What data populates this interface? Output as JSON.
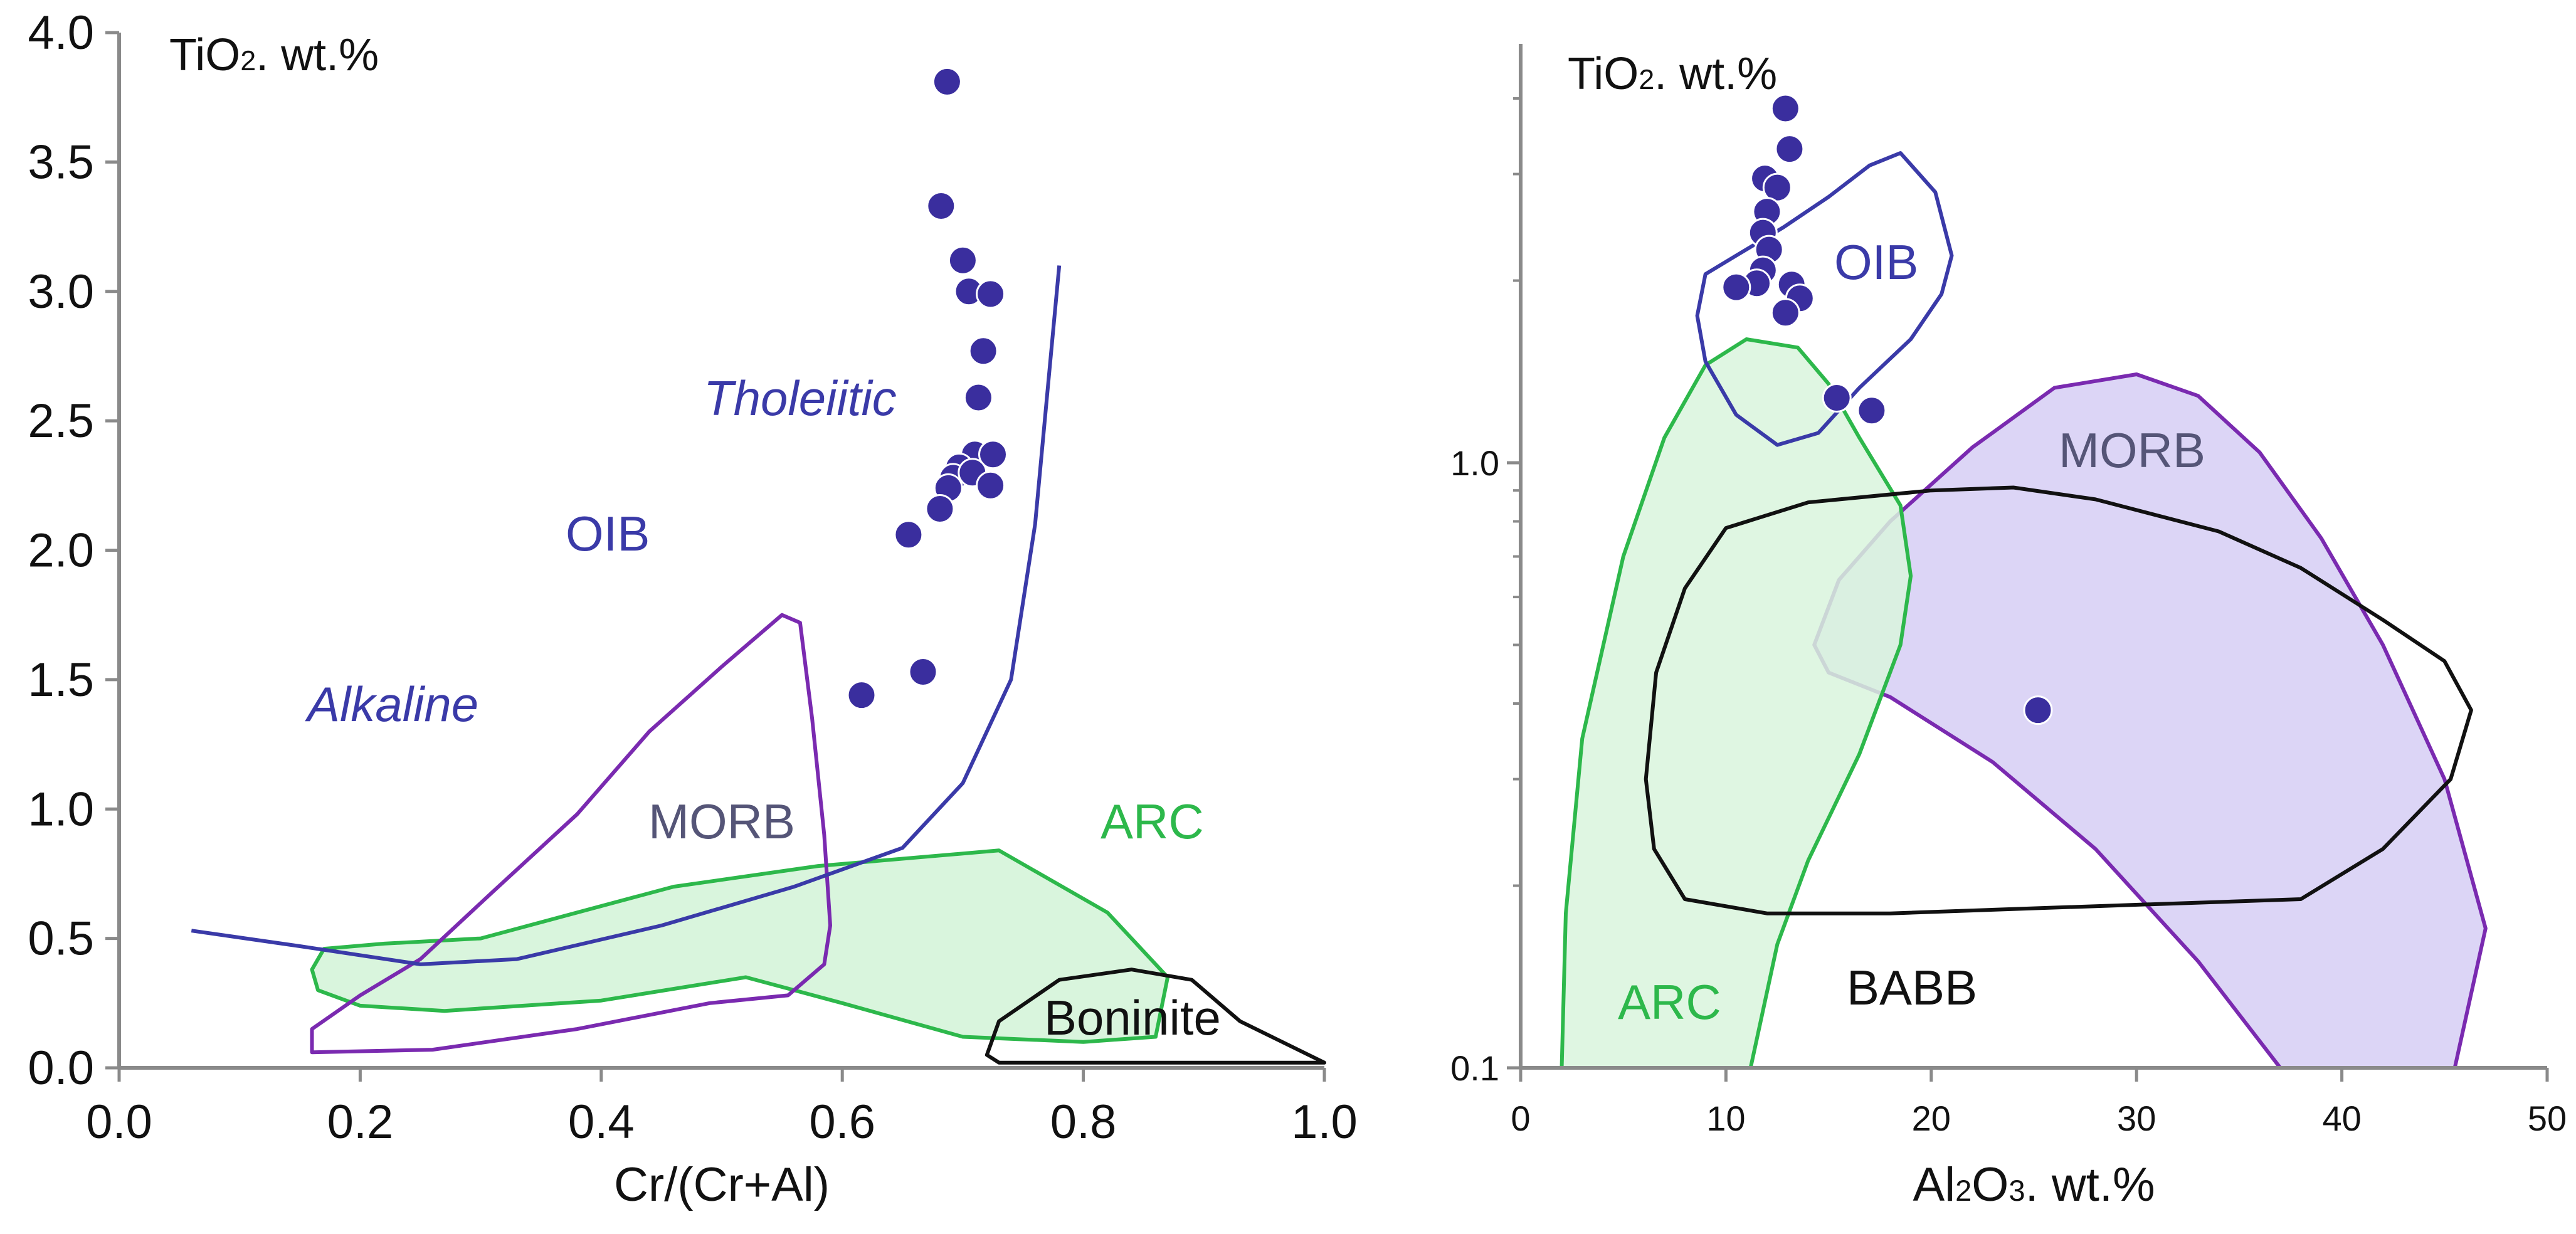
{
  "chart_data": [
    {
      "type": "scatter",
      "panel": "left",
      "xlabel": "Cr/(Cr+Al)",
      "ylabel_annotation": "TiO2. wt.%",
      "xlim": [
        0.0,
        1.0
      ],
      "ylim": [
        0.0,
        4.0
      ],
      "x_ticks": [
        0.0,
        0.2,
        0.4,
        0.6,
        0.8,
        1.0
      ],
      "x_tick_labels": [
        "0.0",
        "0.2",
        "0.4",
        "0.6",
        "0.8",
        "1.0"
      ],
      "y_ticks": [
        0.0,
        0.5,
        1.0,
        1.5,
        2.0,
        2.5,
        3.0,
        3.5,
        4.0
      ],
      "y_tick_labels": [
        "0.0",
        "0.5",
        "1.0",
        "1.5",
        "2.0",
        "2.5",
        "3.0",
        "3.5",
        "4.0"
      ],
      "grid": false,
      "points": [
        {
          "x": 0.687,
          "y": 3.81
        },
        {
          "x": 0.682,
          "y": 3.33
        },
        {
          "x": 0.7,
          "y": 3.12
        },
        {
          "x": 0.705,
          "y": 3.0
        },
        {
          "x": 0.723,
          "y": 2.99
        },
        {
          "x": 0.717,
          "y": 2.77
        },
        {
          "x": 0.713,
          "y": 2.59
        },
        {
          "x": 0.71,
          "y": 2.37
        },
        {
          "x": 0.725,
          "y": 2.37
        },
        {
          "x": 0.697,
          "y": 2.32
        },
        {
          "x": 0.692,
          "y": 2.28
        },
        {
          "x": 0.708,
          "y": 2.3
        },
        {
          "x": 0.723,
          "y": 2.25
        },
        {
          "x": 0.688,
          "y": 2.24
        },
        {
          "x": 0.681,
          "y": 2.16
        },
        {
          "x": 0.655,
          "y": 2.06
        },
        {
          "x": 0.667,
          "y": 1.53
        },
        {
          "x": 0.616,
          "y": 1.44
        }
      ],
      "regions": [
        {
          "name": "ARC",
          "color": "#2db84b",
          "fill": "#d9f5dd",
          "outline": [
            [
              0.17,
              0.46
            ],
            [
              0.22,
              0.48
            ],
            [
              0.3,
              0.5
            ],
            [
              0.38,
              0.6
            ],
            [
              0.46,
              0.7
            ],
            [
              0.58,
              0.78
            ],
            [
              0.73,
              0.84
            ],
            [
              0.82,
              0.6
            ],
            [
              0.87,
              0.35
            ],
            [
              0.86,
              0.12
            ],
            [
              0.8,
              0.1
            ],
            [
              0.7,
              0.12
            ],
            [
              0.6,
              0.25
            ],
            [
              0.52,
              0.35
            ],
            [
              0.4,
              0.26
            ],
            [
              0.27,
              0.22
            ],
            [
              0.2,
              0.24
            ],
            [
              0.165,
              0.3
            ],
            [
              0.16,
              0.38
            ]
          ]
        },
        {
          "name": "MORB",
          "color": "#7a2ab0",
          "fill": "none",
          "outline": [
            [
              0.16,
              0.15
            ],
            [
              0.2,
              0.28
            ],
            [
              0.25,
              0.42
            ],
            [
              0.31,
              0.68
            ],
            [
              0.38,
              0.98
            ],
            [
              0.44,
              1.3
            ],
            [
              0.5,
              1.55
            ],
            [
              0.55,
              1.75
            ],
            [
              0.565,
              1.72
            ],
            [
              0.575,
              1.35
            ],
            [
              0.585,
              0.9
            ],
            [
              0.59,
              0.55
            ],
            [
              0.585,
              0.4
            ],
            [
              0.555,
              0.28
            ],
            [
              0.49,
              0.25
            ],
            [
              0.38,
              0.15
            ],
            [
              0.26,
              0.07
            ],
            [
              0.16,
              0.06
            ]
          ]
        },
        {
          "name": "Boninite",
          "color": "#111111",
          "fill": "none",
          "outline": [
            [
              0.72,
              0.05
            ],
            [
              0.73,
              0.18
            ],
            [
              0.78,
              0.34
            ],
            [
              0.84,
              0.38
            ],
            [
              0.89,
              0.34
            ],
            [
              0.93,
              0.18
            ],
            [
              1.0,
              0.02
            ],
            [
              0.73,
              0.02
            ]
          ]
        }
      ],
      "boundary_curve": {
        "color": "#3a3aa8",
        "points": [
          [
            0.06,
            0.53
          ],
          [
            0.15,
            0.47
          ],
          [
            0.25,
            0.4
          ],
          [
            0.33,
            0.42
          ],
          [
            0.45,
            0.55
          ],
          [
            0.56,
            0.7
          ],
          [
            0.65,
            0.85
          ],
          [
            0.7,
            1.1
          ],
          [
            0.74,
            1.5
          ],
          [
            0.76,
            2.1
          ],
          [
            0.77,
            2.6
          ],
          [
            0.78,
            3.1
          ]
        ]
      },
      "annotations": [
        {
          "text": "TiO2. wt.%",
          "color": "#111111"
        },
        {
          "text": "Tholeiitic",
          "color": "#3a3aa8",
          "italic": true
        },
        {
          "text": "OIB",
          "color": "#3a3aa8"
        },
        {
          "text": "Alkaline",
          "color": "#3a3aa8",
          "italic": true
        },
        {
          "text": "MORB",
          "color": "#555577"
        },
        {
          "text": "ARC",
          "color": "#2db84b"
        },
        {
          "text": "Boninite",
          "color": "#111111"
        }
      ]
    },
    {
      "type": "scatter",
      "panel": "right",
      "xlabel": "Al2O3. wt.%",
      "ylabel_annotation": "TiO2. wt.%",
      "xlim": [
        0,
        50
      ],
      "ylim": [
        0.1,
        4.5
      ],
      "y_scale": "log",
      "x_ticks": [
        0,
        10,
        20,
        30,
        40,
        50
      ],
      "x_tick_labels": [
        "0",
        "10",
        "20",
        "30",
        "40",
        "50"
      ],
      "y_ticks": [
        0.1,
        1.0
      ],
      "y_tick_labels": [
        "0.1",
        "1.0"
      ],
      "grid": false,
      "points": [
        {
          "x": 12.9,
          "y": 3.85
        },
        {
          "x": 13.1,
          "y": 3.3
        },
        {
          "x": 11.9,
          "y": 2.95
        },
        {
          "x": 12.5,
          "y": 2.85
        },
        {
          "x": 12.0,
          "y": 2.6
        },
        {
          "x": 11.8,
          "y": 2.4
        },
        {
          "x": 12.1,
          "y": 2.25
        },
        {
          "x": 11.8,
          "y": 2.08
        },
        {
          "x": 11.5,
          "y": 1.98
        },
        {
          "x": 10.5,
          "y": 1.95
        },
        {
          "x": 13.2,
          "y": 1.97
        },
        {
          "x": 13.6,
          "y": 1.87
        },
        {
          "x": 12.9,
          "y": 1.77
        },
        {
          "x": 15.4,
          "y": 1.28
        },
        {
          "x": 17.1,
          "y": 1.22
        },
        {
          "x": 25.2,
          "y": 0.39
        }
      ],
      "regions": [
        {
          "name": "MORB",
          "color": "#7a2ab0",
          "fill": "#d6cef5",
          "outline": [
            [
              14.3,
              0.5
            ],
            [
              15.5,
              0.64
            ],
            [
              18,
              0.8
            ],
            [
              22,
              1.06
            ],
            [
              26,
              1.33
            ],
            [
              30,
              1.4
            ],
            [
              33,
              1.29
            ],
            [
              36,
              1.04
            ],
            [
              39,
              0.75
            ],
            [
              42,
              0.5
            ],
            [
              45,
              0.3
            ],
            [
              47,
              0.17
            ],
            [
              45.5,
              0.1
            ],
            [
              37,
              0.1
            ],
            [
              33,
              0.15
            ],
            [
              28,
              0.23
            ],
            [
              23,
              0.32
            ],
            [
              18,
              0.41
            ],
            [
              15,
              0.45
            ]
          ]
        },
        {
          "name": "ARC",
          "color": "#2db84b",
          "fill": "#d9f5dd",
          "outline": [
            [
              2,
              0.1
            ],
            [
              2.2,
              0.18
            ],
            [
              3,
              0.35
            ],
            [
              5,
              0.7
            ],
            [
              7,
              1.1
            ],
            [
              9,
              1.45
            ],
            [
              11,
              1.6
            ],
            [
              13.5,
              1.55
            ],
            [
              15,
              1.35
            ],
            [
              16.5,
              1.1
            ],
            [
              18.5,
              0.85
            ],
            [
              19,
              0.65
            ],
            [
              18.5,
              0.5
            ],
            [
              16.5,
              0.33
            ],
            [
              14,
              0.22
            ],
            [
              12.5,
              0.16
            ],
            [
              11.2,
              0.1
            ]
          ]
        },
        {
          "name": "BABB",
          "color": "#111111",
          "fill": "none",
          "outline": [
            [
              8,
              0.19
            ],
            [
              6.5,
              0.23
            ],
            [
              6.1,
              0.3
            ],
            [
              6.6,
              0.45
            ],
            [
              8,
              0.62
            ],
            [
              10,
              0.78
            ],
            [
              14,
              0.86
            ],
            [
              20,
              0.9
            ],
            [
              24,
              0.91
            ],
            [
              28,
              0.87
            ],
            [
              34,
              0.77
            ],
            [
              38,
              0.67
            ],
            [
              42,
              0.55
            ],
            [
              45,
              0.47
            ],
            [
              46.3,
              0.39
            ],
            [
              45.3,
              0.3
            ],
            [
              42,
              0.23
            ],
            [
              38,
              0.19
            ],
            [
              28,
              0.185
            ],
            [
              18,
              0.18
            ],
            [
              12,
              0.18
            ]
          ]
        },
        {
          "name": "OIB",
          "color": "#3a3aa8",
          "fill": "none",
          "outline": [
            [
              12.5,
              1.07
            ],
            [
              10.5,
              1.2
            ],
            [
              9.0,
              1.47
            ],
            [
              8.6,
              1.75
            ],
            [
              9.0,
              2.05
            ],
            [
              10.5,
              2.2
            ],
            [
              12.8,
              2.45
            ],
            [
              15,
              2.75
            ],
            [
              17,
              3.1
            ],
            [
              18.5,
              3.25
            ],
            [
              20.2,
              2.8
            ],
            [
              21,
              2.2
            ],
            [
              20.5,
              1.9
            ],
            [
              19,
              1.6
            ],
            [
              16.5,
              1.33
            ],
            [
              14.5,
              1.12
            ]
          ]
        }
      ],
      "annotations": [
        {
          "text": "TiO2. wt.%",
          "color": "#111111"
        },
        {
          "text": "OIB",
          "color": "#3a3aa8"
        },
        {
          "text": "MORB",
          "color": "#555577"
        },
        {
          "text": "ARC",
          "color": "#2db84b"
        },
        {
          "text": "BABB",
          "color": "#111111"
        }
      ]
    }
  ]
}
